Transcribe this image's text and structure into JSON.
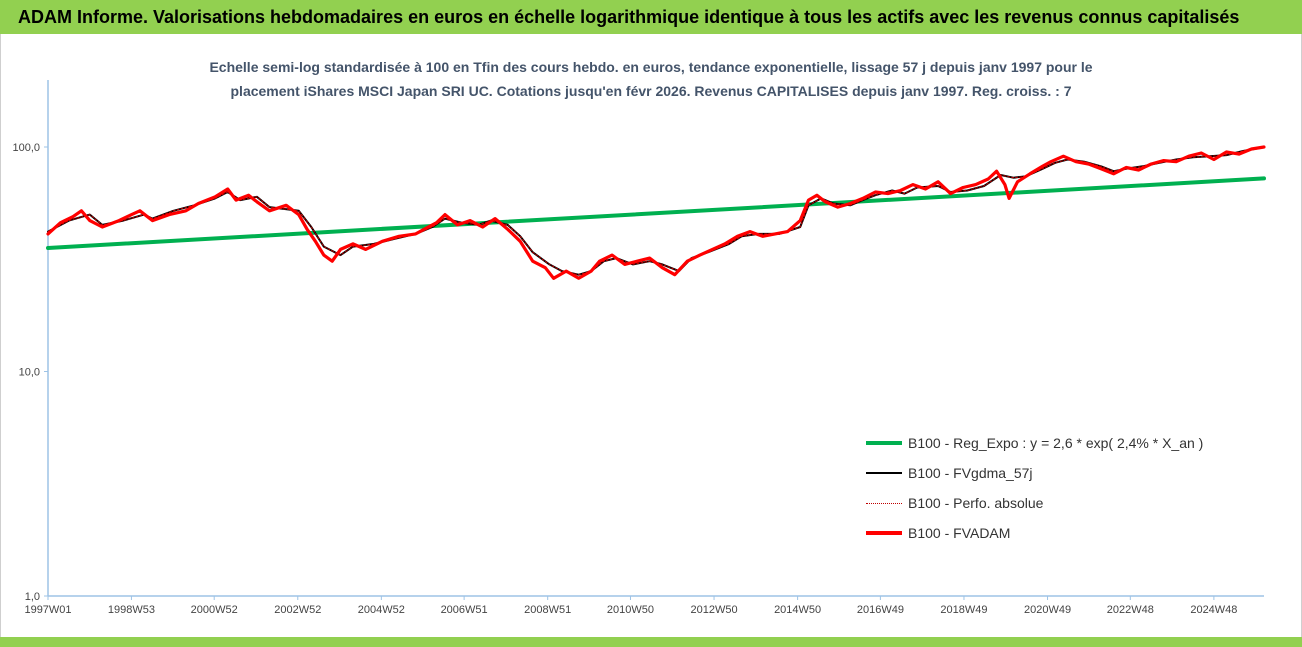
{
  "header": {
    "title": "ADAM Informe. Valorisations hebdomadaires en euros en échelle logarithmique identique à tous les actifs avec les revenus connus capitalisés"
  },
  "subtitle": {
    "line1": "Echelle semi-log standardisée à 100 en Tfin des cours hebdo. en euros, tendance exponentielle, lissage 57 j depuis janv 1997 pour le",
    "line2": "placement iShares MSCI Japan SRI UC. Cotations jusqu'en févr 2026. Revenus CAPITALISES depuis janv 1997. Reg. croiss. : 7"
  },
  "colors": {
    "banner": "#92d050",
    "trend": "#00b050",
    "smooth": "#000000",
    "perf": "#c00000",
    "fvadam": "#ff0000",
    "axis": "#9dc3e6"
  },
  "chart_data": {
    "type": "line",
    "yscale": "log",
    "ylim": [
      1,
      200
    ],
    "yticks": [
      "1,0",
      "10,0",
      "100,0"
    ],
    "xlim": [
      1997.0,
      2026.1
    ],
    "xticks": [
      "1997W01",
      "1998W53",
      "2000W52",
      "2002W52",
      "2004W52",
      "2006W51",
      "2008W51",
      "2010W50",
      "2012W50",
      "2014W50",
      "2016W49",
      "2018W49",
      "2020W49",
      "2022W48",
      "2024W48"
    ],
    "series": [
      {
        "name": "B100 - Reg_Expo : y = 2,6 * exp( 2,4% *  X_an )",
        "style": "trend",
        "points": [
          [
            1997.0,
            35.5
          ],
          [
            2026.1,
            72.5
          ]
        ]
      },
      {
        "name": "B100 - FVgdma_57j",
        "style": "smooth",
        "points": [
          [
            1997.0,
            42
          ],
          [
            1997.5,
            47
          ],
          [
            1998.0,
            50
          ],
          [
            1998.3,
            45
          ],
          [
            1998.8,
            47
          ],
          [
            1999.3,
            50
          ],
          [
            1999.5,
            48
          ],
          [
            2000.0,
            52
          ],
          [
            2000.5,
            55
          ],
          [
            2001.0,
            59
          ],
          [
            2001.3,
            63
          ],
          [
            2001.6,
            58
          ],
          [
            2002.0,
            60
          ],
          [
            2002.3,
            54
          ],
          [
            2003.0,
            52
          ],
          [
            2003.3,
            44
          ],
          [
            2003.6,
            36
          ],
          [
            2004.0,
            33
          ],
          [
            2004.3,
            36
          ],
          [
            2004.8,
            37
          ],
          [
            2005.3,
            39
          ],
          [
            2005.8,
            41
          ],
          [
            2006.2,
            44
          ],
          [
            2006.5,
            48
          ],
          [
            2006.9,
            46
          ],
          [
            2007.3,
            45
          ],
          [
            2007.6,
            47
          ],
          [
            2008.0,
            45
          ],
          [
            2008.3,
            40
          ],
          [
            2008.6,
            34
          ],
          [
            2009.0,
            30
          ],
          [
            2009.3,
            28
          ],
          [
            2009.7,
            27
          ],
          [
            2010.0,
            28
          ],
          [
            2010.3,
            31
          ],
          [
            2010.6,
            32
          ],
          [
            2011.0,
            30
          ],
          [
            2011.4,
            31
          ],
          [
            2011.7,
            30
          ],
          [
            2012.1,
            28
          ],
          [
            2012.4,
            32
          ],
          [
            2012.8,
            34
          ],
          [
            2013.3,
            37
          ],
          [
            2013.6,
            40
          ],
          [
            2014.0,
            41
          ],
          [
            2014.5,
            41
          ],
          [
            2015.0,
            44
          ],
          [
            2015.2,
            55
          ],
          [
            2015.5,
            59
          ],
          [
            2015.8,
            56
          ],
          [
            2016.2,
            55
          ],
          [
            2016.5,
            58
          ],
          [
            2016.8,
            61
          ],
          [
            2017.2,
            64
          ],
          [
            2017.5,
            62
          ],
          [
            2017.8,
            66
          ],
          [
            2018.3,
            67
          ],
          [
            2018.6,
            63
          ],
          [
            2019.0,
            64
          ],
          [
            2019.4,
            67
          ],
          [
            2019.8,
            75
          ],
          [
            2020.1,
            73
          ],
          [
            2020.4,
            74
          ],
          [
            2020.8,
            80
          ],
          [
            2021.1,
            85
          ],
          [
            2021.4,
            88
          ],
          [
            2021.8,
            86
          ],
          [
            2022.2,
            82
          ],
          [
            2022.5,
            78
          ],
          [
            2022.8,
            80
          ],
          [
            2023.2,
            82
          ],
          [
            2023.6,
            85
          ],
          [
            2024.0,
            88
          ],
          [
            2024.4,
            90
          ],
          [
            2024.8,
            91
          ],
          [
            2025.2,
            92
          ],
          [
            2025.6,
            96
          ],
          [
            2026.0,
            99
          ]
        ]
      },
      {
        "name": "B100 - Perfo. absolue",
        "style": "perf",
        "points": [
          [
            1997.0,
            42
          ],
          [
            1997.5,
            47
          ],
          [
            1998.0,
            50
          ],
          [
            1998.3,
            45
          ],
          [
            1998.8,
            47
          ],
          [
            1999.3,
            50
          ],
          [
            1999.5,
            48
          ],
          [
            2000.0,
            52
          ],
          [
            2000.5,
            55
          ],
          [
            2001.0,
            59
          ],
          [
            2001.3,
            63
          ],
          [
            2001.6,
            58
          ],
          [
            2002.0,
            60
          ],
          [
            2002.3,
            54
          ],
          [
            2003.0,
            52
          ],
          [
            2003.3,
            44
          ],
          [
            2003.6,
            36
          ],
          [
            2004.0,
            33
          ],
          [
            2004.3,
            36
          ],
          [
            2004.8,
            37
          ],
          [
            2005.3,
            39
          ],
          [
            2005.8,
            41
          ],
          [
            2006.2,
            44
          ],
          [
            2006.5,
            48
          ],
          [
            2006.9,
            46
          ],
          [
            2007.3,
            45
          ],
          [
            2007.6,
            47
          ],
          [
            2008.0,
            45
          ],
          [
            2008.3,
            40
          ],
          [
            2008.6,
            34
          ],
          [
            2009.0,
            30
          ],
          [
            2009.3,
            28
          ],
          [
            2009.7,
            27
          ],
          [
            2010.0,
            28
          ],
          [
            2010.3,
            31
          ],
          [
            2010.6,
            32
          ],
          [
            2011.0,
            30
          ],
          [
            2011.4,
            31
          ],
          [
            2011.7,
            30
          ],
          [
            2012.1,
            28
          ],
          [
            2012.4,
            32
          ],
          [
            2012.8,
            34
          ],
          [
            2013.3,
            37
          ],
          [
            2013.6,
            40
          ],
          [
            2014.0,
            41
          ],
          [
            2014.5,
            41
          ],
          [
            2015.0,
            44
          ],
          [
            2015.2,
            55
          ],
          [
            2015.5,
            59
          ],
          [
            2015.8,
            56
          ],
          [
            2016.2,
            55
          ],
          [
            2016.5,
            58
          ],
          [
            2016.8,
            61
          ],
          [
            2017.2,
            64
          ],
          [
            2017.5,
            62
          ],
          [
            2017.8,
            66
          ],
          [
            2018.3,
            67
          ],
          [
            2018.6,
            63
          ],
          [
            2019.0,
            64
          ],
          [
            2019.4,
            67
          ],
          [
            2019.8,
            75
          ],
          [
            2020.1,
            73
          ],
          [
            2020.4,
            74
          ],
          [
            2020.8,
            80
          ],
          [
            2021.1,
            85
          ],
          [
            2021.4,
            88
          ],
          [
            2021.8,
            86
          ],
          [
            2022.2,
            82
          ],
          [
            2022.5,
            78
          ],
          [
            2022.8,
            80
          ],
          [
            2023.2,
            82
          ],
          [
            2023.6,
            85
          ],
          [
            2024.0,
            88
          ],
          [
            2024.4,
            90
          ],
          [
            2024.8,
            91
          ],
          [
            2025.2,
            92
          ],
          [
            2025.6,
            96
          ],
          [
            2026.0,
            99
          ]
        ]
      },
      {
        "name": "B100 - FVADAM",
        "style": "fvadam",
        "points": [
          [
            1997.0,
            41
          ],
          [
            1997.3,
            46
          ],
          [
            1997.6,
            49
          ],
          [
            1997.8,
            52
          ],
          [
            1998.0,
            47
          ],
          [
            1998.3,
            44
          ],
          [
            1998.7,
            47
          ],
          [
            1999.0,
            50
          ],
          [
            1999.2,
            52
          ],
          [
            1999.5,
            47
          ],
          [
            1999.9,
            50
          ],
          [
            2000.3,
            52
          ],
          [
            2000.6,
            56
          ],
          [
            2001.0,
            60
          ],
          [
            2001.3,
            65
          ],
          [
            2001.5,
            58
          ],
          [
            2001.8,
            61
          ],
          [
            2002.0,
            57
          ],
          [
            2002.3,
            52
          ],
          [
            2002.7,
            55
          ],
          [
            2003.0,
            50
          ],
          [
            2003.2,
            43
          ],
          [
            2003.4,
            38
          ],
          [
            2003.6,
            33
          ],
          [
            2003.8,
            31
          ],
          [
            2004.0,
            35
          ],
          [
            2004.3,
            37
          ],
          [
            2004.6,
            35
          ],
          [
            2005.0,
            38
          ],
          [
            2005.4,
            40
          ],
          [
            2005.8,
            41
          ],
          [
            2006.0,
            43
          ],
          [
            2006.3,
            46
          ],
          [
            2006.5,
            50
          ],
          [
            2006.8,
            45
          ],
          [
            2007.1,
            47
          ],
          [
            2007.4,
            44
          ],
          [
            2007.7,
            48
          ],
          [
            2008.0,
            43
          ],
          [
            2008.3,
            38
          ],
          [
            2008.6,
            31
          ],
          [
            2008.9,
            29
          ],
          [
            2009.1,
            26
          ],
          [
            2009.4,
            28
          ],
          [
            2009.7,
            26
          ],
          [
            2010.0,
            28
          ],
          [
            2010.2,
            31
          ],
          [
            2010.5,
            33
          ],
          [
            2010.8,
            30
          ],
          [
            2011.1,
            31
          ],
          [
            2011.4,
            32
          ],
          [
            2011.7,
            29
          ],
          [
            2012.0,
            27
          ],
          [
            2012.3,
            31
          ],
          [
            2012.6,
            33
          ],
          [
            2012.9,
            35
          ],
          [
            2013.2,
            37
          ],
          [
            2013.5,
            40
          ],
          [
            2013.8,
            42
          ],
          [
            2014.1,
            40
          ],
          [
            2014.4,
            41
          ],
          [
            2014.7,
            42
          ],
          [
            2015.0,
            47
          ],
          [
            2015.2,
            58
          ],
          [
            2015.4,
            61
          ],
          [
            2015.6,
            57
          ],
          [
            2015.9,
            54
          ],
          [
            2016.2,
            56
          ],
          [
            2016.5,
            59
          ],
          [
            2016.8,
            63
          ],
          [
            2017.1,
            62
          ],
          [
            2017.4,
            64
          ],
          [
            2017.7,
            68
          ],
          [
            2018.0,
            65
          ],
          [
            2018.3,
            70
          ],
          [
            2018.6,
            62
          ],
          [
            2018.9,
            66
          ],
          [
            2019.2,
            68
          ],
          [
            2019.5,
            72
          ],
          [
            2019.7,
            78
          ],
          [
            2019.9,
            68
          ],
          [
            2020.0,
            59
          ],
          [
            2020.2,
            70
          ],
          [
            2020.5,
            76
          ],
          [
            2020.8,
            82
          ],
          [
            2021.0,
            86
          ],
          [
            2021.3,
            91
          ],
          [
            2021.6,
            86
          ],
          [
            2021.9,
            84
          ],
          [
            2022.2,
            80
          ],
          [
            2022.5,
            76
          ],
          [
            2022.8,
            81
          ],
          [
            2023.1,
            79
          ],
          [
            2023.4,
            84
          ],
          [
            2023.7,
            87
          ],
          [
            2024.0,
            86
          ],
          [
            2024.3,
            91
          ],
          [
            2024.6,
            94
          ],
          [
            2024.9,
            88
          ],
          [
            2025.2,
            95
          ],
          [
            2025.5,
            93
          ],
          [
            2025.8,
            98
          ],
          [
            2026.1,
            100
          ]
        ]
      }
    ],
    "legend": {
      "position": "bottom-right",
      "items": [
        "B100 - Reg_Expo : y = 2,6 * exp( 2,4% *  X_an )",
        "B100 - FVgdma_57j",
        "B100 - Perfo. absolue",
        "B100 - FVADAM"
      ]
    },
    "grid": false
  }
}
